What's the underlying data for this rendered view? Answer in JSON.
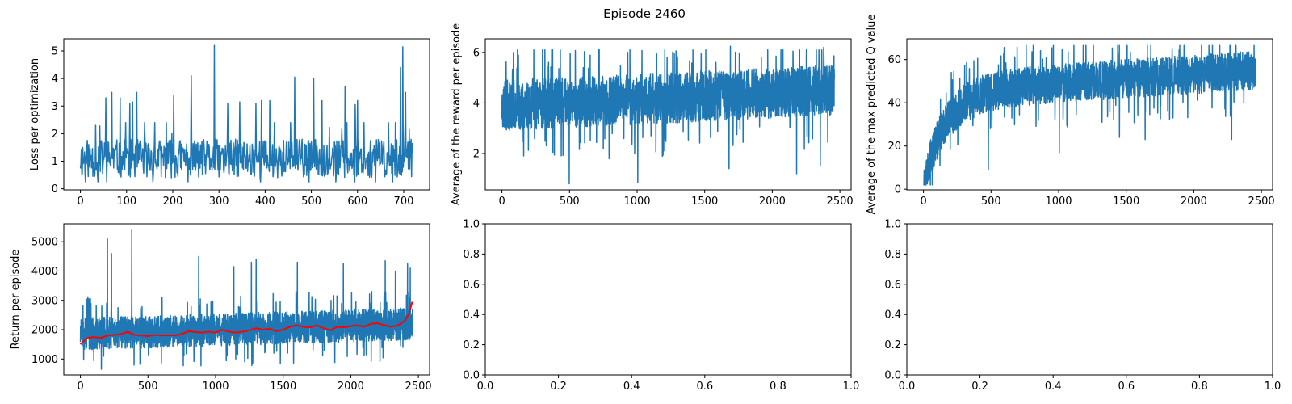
{
  "suptitle": "Episode 2460",
  "colors": {
    "line": "#1f77b4",
    "smooth": "#ff0000",
    "axis": "#000000"
  },
  "chart_data": [
    {
      "id": "loss",
      "type": "line",
      "ylabel": "Loss per optimization",
      "xlabel": "",
      "xlim": [
        -36,
        756
      ],
      "ylim": [
        -0.04,
        5.44
      ],
      "xticks": [
        0,
        100,
        200,
        300,
        400,
        500,
        600,
        700
      ],
      "yticks": [
        0,
        1,
        2,
        3,
        4,
        5
      ],
      "series": [
        {
          "n": 720,
          "baseline": 1.1,
          "noise": 0.7,
          "trend": 0.0,
          "min": 0.25,
          "max": 2.4,
          "seed": 11,
          "spikes": [
            [
              33,
              2.3
            ],
            [
              55,
              3.3
            ],
            [
              68,
              3.5
            ],
            [
              86,
              3.3
            ],
            [
              107,
              3.1
            ],
            [
              113,
              3.15
            ],
            [
              122,
              3.5
            ],
            [
              202,
              3.4
            ],
            [
              240,
              4.1
            ],
            [
              290,
              5.2
            ],
            [
              319,
              3.1
            ],
            [
              345,
              3.15
            ],
            [
              380,
              3.1
            ],
            [
              392,
              3.2
            ],
            [
              410,
              3.2
            ],
            [
              464,
              4.05
            ],
            [
              505,
              4.0
            ],
            [
              523,
              3.2
            ],
            [
              573,
              3.7
            ],
            [
              595,
              3.05
            ],
            [
              600,
              3.2
            ],
            [
              693,
              4.4
            ],
            [
              698,
              5.15
            ],
            [
              704,
              3.5
            ],
            [
              712,
              2.15
            ]
          ]
        }
      ]
    },
    {
      "id": "avg-reward",
      "type": "line",
      "ylabel": "Average of the reward per episode",
      "xlabel": "",
      "xlim": [
        -123,
        2583
      ],
      "ylim": [
        0.56,
        6.54
      ],
      "xticks": [
        0,
        500,
        1000,
        1500,
        2000,
        2500
      ],
      "yticks": [
        2,
        4,
        6
      ],
      "series": [
        {
          "n": 2460,
          "baseline": 3.9,
          "noise": 1.0,
          "trend": 0.6,
          "min": 1.3,
          "max": 6.1,
          "seed": 23,
          "spikes": [
            [
              498,
              0.8
            ],
            [
              1005,
              0.85
            ],
            [
              2180,
              1.2
            ],
            [
              1680,
              1.4
            ],
            [
              2355,
              1.5
            ],
            [
              1690,
              6.25
            ],
            [
              2380,
              6.2
            ]
          ]
        }
      ]
    },
    {
      "id": "max-q",
      "type": "line",
      "ylabel": "Average of the max predicted Q value",
      "xlabel": "",
      "xlim": [
        -123,
        2583
      ],
      "ylim": [
        -0.3,
        69.6
      ],
      "xticks": [
        0,
        500,
        1000,
        1500,
        2000,
        2500
      ],
      "yticks": [
        0,
        20,
        40,
        60
      ],
      "series": [
        {
          "kind": "saturating",
          "n": 2460,
          "start": 3,
          "plateau": 45,
          "k": 0.006,
          "noise": 9,
          "trend": 10,
          "min": 2,
          "max": 66.5,
          "seed": 37,
          "spikes": [
            [
              480,
              9
            ],
            [
              1005,
              17
            ],
            [
              1450,
              24
            ],
            [
              1640,
              23
            ],
            [
              2280,
              23
            ]
          ]
        }
      ]
    },
    {
      "id": "return",
      "type": "line",
      "ylabel": "Return per episode",
      "xlabel": "",
      "xlim": [
        -123,
        2583
      ],
      "ylim": [
        457,
        5612
      ],
      "xticks": [
        0,
        500,
        1000,
        1500,
        2000,
        2500
      ],
      "yticks": [
        1000,
        2000,
        3000,
        4000,
        5000
      ],
      "series": [
        {
          "n": 2460,
          "baseline": 1850,
          "noise": 550,
          "trend": 350,
          "min": 650,
          "max": 3300,
          "seed": 51,
          "spikes": [
            [
              200,
              5100
            ],
            [
              230,
              4600
            ],
            [
              380,
              5400
            ],
            [
              875,
              4500
            ],
            [
              1135,
              4150
            ],
            [
              1265,
              4300
            ],
            [
              1300,
              4400
            ],
            [
              1605,
              4300
            ],
            [
              1945,
              4250
            ],
            [
              2255,
              4350
            ],
            [
              2330,
              4000
            ],
            [
              2420,
              4250
            ],
            [
              2440,
              4100
            ]
          ]
        },
        {
          "name": "",
          "kind": "smooth",
          "color_key": "smooth",
          "points": [
            [
              0,
              1500
            ],
            [
              50,
              1720
            ],
            [
              100,
              1750
            ],
            [
              150,
              1720
            ],
            [
              200,
              1800
            ],
            [
              250,
              1820
            ],
            [
              300,
              1850
            ],
            [
              350,
              1930
            ],
            [
              400,
              1820
            ],
            [
              450,
              1800
            ],
            [
              500,
              1780
            ],
            [
              550,
              1820
            ],
            [
              600,
              1800
            ],
            [
              650,
              1810
            ],
            [
              700,
              1800
            ],
            [
              750,
              1850
            ],
            [
              800,
              1950
            ],
            [
              850,
              1920
            ],
            [
              900,
              1900
            ],
            [
              950,
              1930
            ],
            [
              1000,
              1900
            ],
            [
              1050,
              2000
            ],
            [
              1100,
              1930
            ],
            [
              1150,
              1900
            ],
            [
              1200,
              1930
            ],
            [
              1250,
              1980
            ],
            [
              1300,
              2050
            ],
            [
              1350,
              2000
            ],
            [
              1400,
              2030
            ],
            [
              1450,
              1950
            ],
            [
              1500,
              2000
            ],
            [
              1550,
              2100
            ],
            [
              1600,
              2150
            ],
            [
              1650,
              2100
            ],
            [
              1700,
              2080
            ],
            [
              1750,
              2150
            ],
            [
              1800,
              2050
            ],
            [
              1850,
              1980
            ],
            [
              1900,
              2100
            ],
            [
              1950,
              2080
            ],
            [
              2000,
              2120
            ],
            [
              2050,
              2150
            ],
            [
              2100,
              2100
            ],
            [
              2150,
              2200
            ],
            [
              2200,
              2220
            ],
            [
              2250,
              2150
            ],
            [
              2300,
              2100
            ],
            [
              2350,
              2150
            ],
            [
              2400,
              2300
            ],
            [
              2430,
              2550
            ],
            [
              2455,
              2950
            ]
          ]
        }
      ]
    },
    {
      "id": "empty-1",
      "type": "line",
      "ylabel": "",
      "xlabel": "",
      "xlim": [
        0,
        1
      ],
      "ylim": [
        0,
        1
      ],
      "xticks": [
        0.0,
        0.2,
        0.4,
        0.6,
        0.8,
        1.0
      ],
      "yticks": [
        0.0,
        0.2,
        0.4,
        0.6,
        0.8,
        1.0
      ],
      "tick_format": "1dp",
      "series": []
    },
    {
      "id": "empty-2",
      "type": "line",
      "ylabel": "",
      "xlabel": "",
      "xlim": [
        0,
        1
      ],
      "ylim": [
        0,
        1
      ],
      "xticks": [
        0.0,
        0.2,
        0.4,
        0.6,
        0.8,
        1.0
      ],
      "yticks": [
        0.0,
        0.2,
        0.4,
        0.6,
        0.8,
        1.0
      ],
      "tick_format": "1dp",
      "series": []
    }
  ]
}
